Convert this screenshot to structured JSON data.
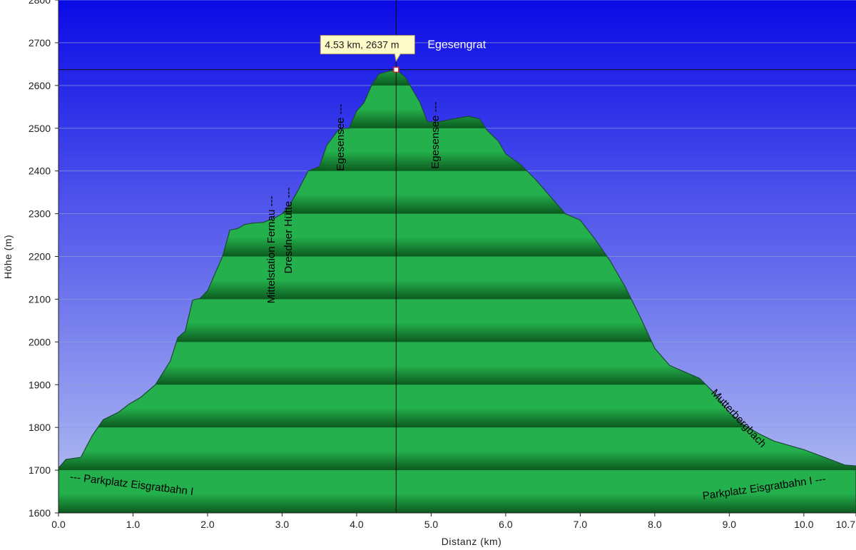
{
  "chart_data": {
    "type": "area",
    "xlabel": "Distanz",
    "xunit": "(km)",
    "ylabel": "Höhe (m)",
    "xlim": [
      0.0,
      10.7
    ],
    "ylim": [
      1600,
      2800
    ],
    "x_ticks": [
      0.0,
      1.0,
      2.0,
      3.0,
      4.0,
      5.0,
      6.0,
      7.0,
      8.0,
      9.0,
      10.0,
      10.7
    ],
    "x_tick_labels": [
      "0.0",
      "1.0",
      "2.0",
      "3.0",
      "4.0",
      "5.0",
      "6.0",
      "7.0",
      "8.0",
      "9.0",
      "10.0",
      "10.7"
    ],
    "y_ticks": [
      1600,
      1700,
      1800,
      1900,
      2000,
      2100,
      2200,
      2300,
      2400,
      2500,
      2600,
      2700,
      2800
    ],
    "y_tick_labels": [
      "1600",
      "1700",
      "1800",
      "1900",
      "2000",
      "2100",
      "2200",
      "2300",
      "2400",
      "2500",
      "2600",
      "2700",
      "2800"
    ],
    "grid": true,
    "colors": {
      "sky_top": "#0a0ae6",
      "sky_bottom": "#b8c4f2",
      "fill_light": "#24b04c",
      "fill_dark": "#0b5a1e",
      "outline": "#1a4a36",
      "grid": "#8aa0d8",
      "tooltip_bg": "#fffbc8",
      "tooltip_border": "#b8a060"
    },
    "series": [
      {
        "x": [
          0.0,
          0.1,
          0.3,
          0.45,
          0.6,
          0.8,
          0.95,
          1.1,
          1.3,
          1.5,
          1.6,
          1.7,
          1.8,
          1.9,
          2.0,
          2.1,
          2.2,
          2.3,
          2.4,
          2.5,
          2.6,
          2.75,
          2.9,
          3.0,
          3.1,
          3.2,
          3.35,
          3.5,
          3.6,
          3.75,
          3.85,
          3.9,
          4.0,
          4.1,
          4.2,
          4.3,
          4.4,
          4.53,
          4.65,
          4.75,
          4.85,
          4.95,
          5.1,
          5.3,
          5.5,
          5.65,
          5.75,
          5.9,
          6.0,
          6.2,
          6.4,
          6.6,
          6.8,
          7.0,
          7.2,
          7.4,
          7.6,
          7.8,
          8.0,
          8.2,
          8.4,
          8.6,
          8.8,
          9.0,
          9.2,
          9.4,
          9.6,
          9.8,
          10.0,
          10.2,
          10.4,
          10.55,
          10.7
        ],
        "y": [
          1705,
          1725,
          1730,
          1780,
          1818,
          1835,
          1855,
          1870,
          1900,
          1955,
          2010,
          2025,
          2098,
          2102,
          2120,
          2160,
          2200,
          2262,
          2265,
          2275,
          2278,
          2280,
          2290,
          2300,
          2320,
          2350,
          2400,
          2410,
          2460,
          2495,
          2500,
          2500,
          2540,
          2560,
          2600,
          2627,
          2632,
          2637,
          2620,
          2590,
          2560,
          2515,
          2515,
          2522,
          2528,
          2522,
          2495,
          2470,
          2440,
          2415,
          2380,
          2340,
          2300,
          2285,
          2240,
          2190,
          2130,
          2060,
          1985,
          1945,
          1930,
          1915,
          1880,
          1835,
          1805,
          1785,
          1768,
          1758,
          1748,
          1735,
          1722,
          1712,
          1710
        ]
      }
    ],
    "cursor": {
      "x": 4.53,
      "y": 2637,
      "tooltip": "4.53 km, 2637 m",
      "label": "Egesengrat"
    },
    "annotations": [
      {
        "text": "--- Parkplatz Eisgratbahn I",
        "x": 0.15,
        "y": 1677,
        "rotate": 7
      },
      {
        "text": "Parkplatz Eisgratbahn I ---",
        "x": 10.3,
        "y": 1672,
        "rotate": -8
      },
      {
        "text": "Mittelstation Fernau ---",
        "x": 2.9,
        "y": 2090,
        "rotate": -90
      },
      {
        "text": "Dresdner Hütte ---",
        "x": 3.13,
        "y": 2160,
        "rotate": -90
      },
      {
        "text": "Egesensee ---",
        "x": 3.83,
        "y": 2400,
        "rotate": -90
      },
      {
        "text": "Egesensee ---",
        "x": 5.1,
        "y": 2405,
        "rotate": -90
      },
      {
        "text": "Mutterbergbach",
        "x": 8.75,
        "y": 1880,
        "rotate": 47
      }
    ]
  }
}
